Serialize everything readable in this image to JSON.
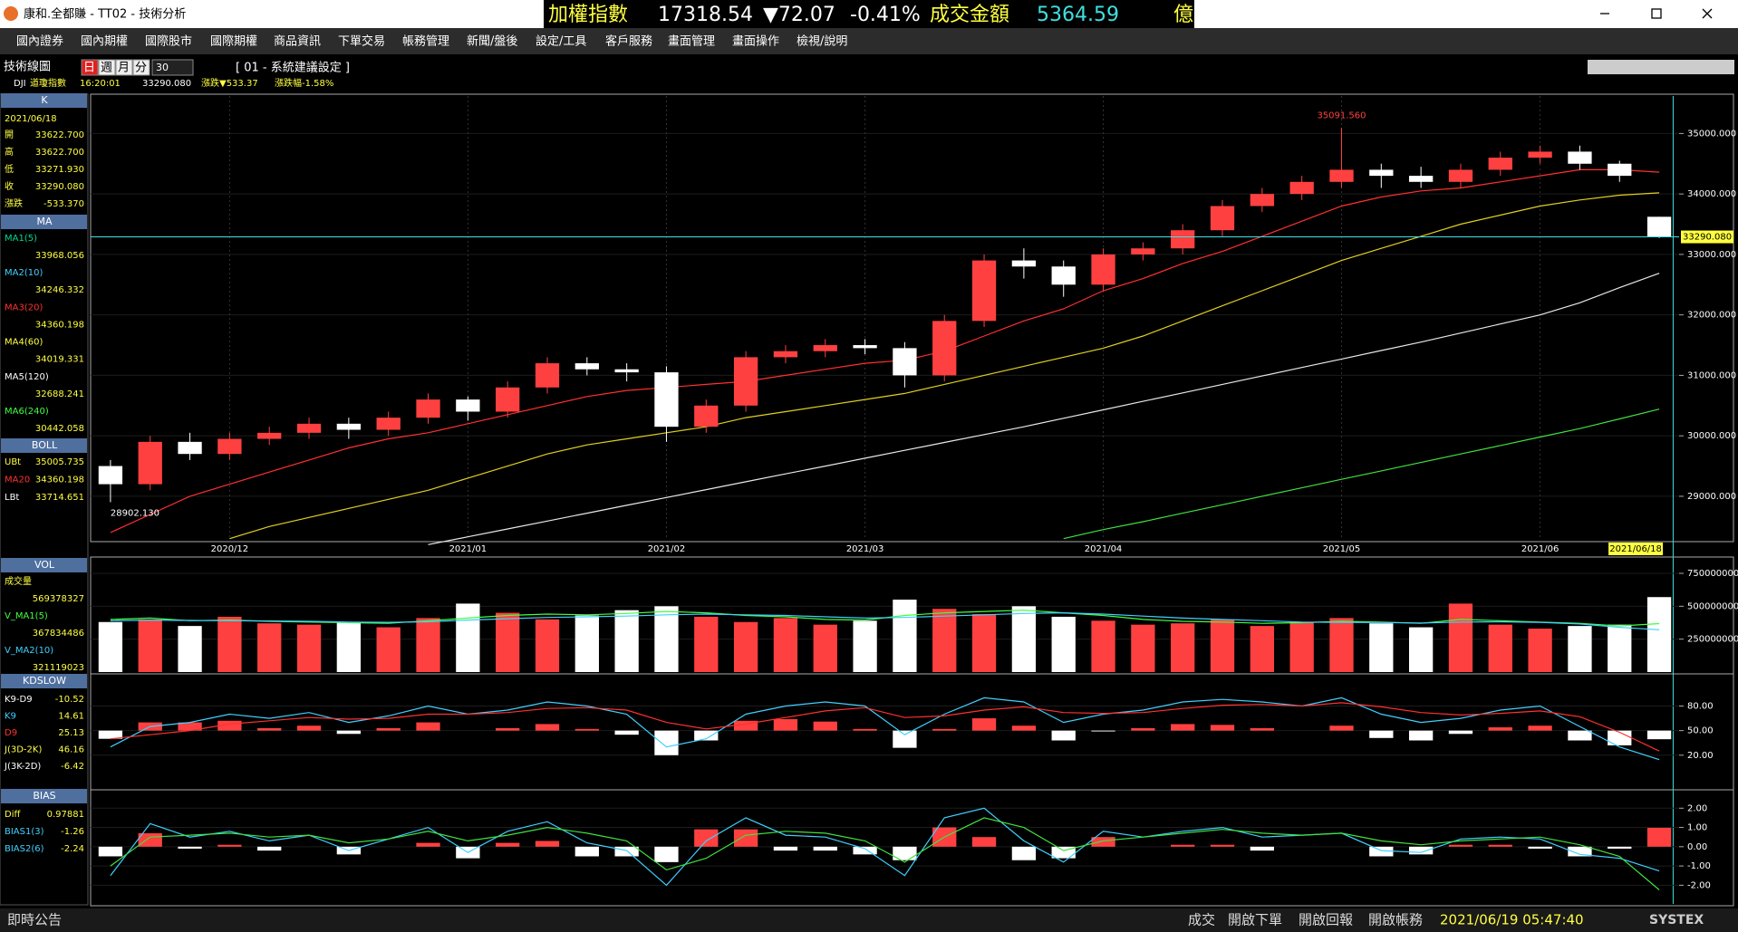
{
  "window": {
    "title": "康和.全都賺 - TT02 - 技術分析"
  },
  "ticker": {
    "name": "加權指數",
    "price": "17318.54",
    "change": "▼72.07",
    "percent": "-0.41%",
    "amount_label": "成交金額",
    "amount": "5364.59",
    "unit": "億"
  },
  "menu": [
    "國內證券",
    "國內期權",
    "國際股市",
    "國際期權",
    "商品資訊",
    "下單交易",
    "帳務管理",
    "新聞/盤後",
    "設定/工具",
    "客戶服務",
    "畫面管理",
    "畫面操作",
    "檢視/說明"
  ],
  "toolbar": {
    "title": "技術線圖",
    "periods": [
      "日",
      "週",
      "月",
      "分"
    ],
    "count": "30",
    "setting": "[ 01 - 系統建議設定 ]"
  },
  "quote": {
    "symbol": "DJI",
    "name": "道瓊指數",
    "time": "16:20:01",
    "price": "33290.080",
    "change": "漲跌▼533.37",
    "percent": "漲跌幅-1.58%"
  },
  "info": {
    "k": {
      "title": "K",
      "date": "2021/06/18",
      "rows": [
        {
          "label": "開",
          "value": "33622.700"
        },
        {
          "label": "高",
          "value": "33622.700"
        },
        {
          "label": "低",
          "value": "33271.930"
        },
        {
          "label": "收",
          "value": "33290.080"
        },
        {
          "label": "漲跌",
          "value": "-533.370"
        }
      ]
    },
    "ma": {
      "title": "MA",
      "rows": [
        {
          "label": "MA1(5)",
          "value": "33968.056",
          "color": "#00d890"
        },
        {
          "label": "MA2(10)",
          "value": "34246.332",
          "color": "#40d0ff"
        },
        {
          "label": "MA3(20)",
          "value": "34360.198",
          "color": "#ff3030"
        },
        {
          "label": "MA4(60)",
          "value": "34019.331",
          "color": "#ffff40"
        },
        {
          "label": "MA5(120)",
          "value": "32688.241",
          "color": "#ffffff"
        },
        {
          "label": "MA6(240)",
          "value": "30442.058",
          "color": "#40ff40"
        }
      ]
    },
    "boll": {
      "title": "BOLL",
      "rows": [
        {
          "label": "UBt",
          "value": "35005.735",
          "color": "#ffff40"
        },
        {
          "label": "MA20",
          "value": "34360.198",
          "color": "#ff3030"
        },
        {
          "label": "LBt",
          "value": "33714.651",
          "color": "#ffffff"
        }
      ]
    },
    "vol": {
      "title": "VOL",
      "rows": [
        {
          "label": "成交量",
          "value": "569378327",
          "color": "#ffff40"
        },
        {
          "label": "V_MA1(5)",
          "value": "367834486",
          "color": "#40ff40"
        },
        {
          "label": "V_MA2(10)",
          "value": "321119023",
          "color": "#40d0ff"
        }
      ]
    },
    "kd": {
      "title": "KDSLOW",
      "rows": [
        {
          "label": "K9-D9",
          "value": "-10.52",
          "color": "#ffffff"
        },
        {
          "label": "K9",
          "value": "14.61",
          "color": "#40d0ff"
        },
        {
          "label": "D9",
          "value": "25.13",
          "color": "#ff3030"
        },
        {
          "label": "J(3D-2K)",
          "value": "46.16",
          "color": "#ffff40"
        },
        {
          "label": "J(3K-2D)",
          "value": "-6.42",
          "color": "#ffffff"
        }
      ]
    },
    "bias": {
      "title": "BIAS",
      "rows": [
        {
          "label": "Diff",
          "value": "0.97881",
          "color": "#ffff40"
        },
        {
          "label": "BIAS1(3)",
          "value": "-1.26",
          "color": "#40d0ff"
        },
        {
          "label": "BIAS2(6)",
          "value": "-2.24",
          "color": "#40d0ff"
        }
      ]
    }
  },
  "chart_data": [
    {
      "type": "candlestick",
      "up_color": "#ff4040",
      "down_color": "#ffffff",
      "categories": [
        null,
        null,
        null,
        "2020/12",
        null,
        null,
        null,
        null,
        null,
        "2021/01",
        null,
        null,
        null,
        null,
        "2021/02",
        null,
        null,
        null,
        null,
        "2021/03",
        null,
        null,
        null,
        null,
        null,
        "2021/04",
        null,
        null,
        null,
        null,
        null,
        "2021/05",
        null,
        null,
        null,
        null,
        "2021/06",
        null,
        null,
        "2021/06/18"
      ],
      "open": [
        29500,
        29200,
        29900,
        29700,
        29950,
        30050,
        30200,
        30100,
        30300,
        30600,
        30400,
        30800,
        31200,
        31100,
        31050,
        30150,
        30500,
        31300,
        31400,
        31500,
        31450,
        31000,
        31900,
        32900,
        32800,
        32500,
        33000,
        33100,
        33400,
        33800,
        34000,
        34200,
        34400,
        34300,
        34200,
        34400,
        34600,
        34700,
        34500,
        33622.7
      ],
      "high": [
        29600,
        30000,
        30050,
        30050,
        30150,
        30300,
        30300,
        30400,
        30700,
        30650,
        30900,
        31300,
        31300,
        31200,
        31150,
        30600,
        31400,
        31500,
        31600,
        31600,
        31550,
        32000,
        33000,
        33100,
        32900,
        33100,
        33200,
        33500,
        33900,
        34100,
        34300,
        35091.56,
        34500,
        34450,
        34500,
        34700,
        34800,
        34800,
        34550,
        33622.7
      ],
      "low": [
        28902.13,
        29100,
        29600,
        29600,
        29850,
        29950,
        29950,
        30000,
        30200,
        30250,
        30300,
        30700,
        31000,
        30900,
        29900,
        30050,
        30400,
        31200,
        31300,
        31350,
        30800,
        30900,
        31800,
        32600,
        32300,
        32400,
        32900,
        33000,
        33300,
        33700,
        33900,
        34100,
        34100,
        34100,
        34100,
        34300,
        34500,
        34400,
        34200,
        33271.93
      ],
      "close": [
        29200,
        29900,
        29700,
        29950,
        30050,
        30200,
        30100,
        30300,
        30600,
        30400,
        30800,
        31200,
        31100,
        31050,
        30150,
        30500,
        31300,
        31400,
        31500,
        31450,
        31000,
        31900,
        32900,
        32800,
        32500,
        33000,
        33100,
        33400,
        33800,
        34000,
        34200,
        34400,
        34300,
        34200,
        34400,
        34600,
        34700,
        34500,
        34300,
        33290.08
      ],
      "lines": [
        {
          "color": "#ff3030",
          "values": [
            28400,
            28700,
            29000,
            29200,
            29400,
            29600,
            29800,
            29950,
            30050,
            30200,
            30350,
            30500,
            30650,
            30750,
            30800,
            30850,
            30900,
            31000,
            31100,
            31200,
            31250,
            31400,
            31650,
            31900,
            32100,
            32400,
            32600,
            32850,
            33050,
            33300,
            33550,
            33800,
            33950,
            34050,
            34100,
            34200,
            34300,
            34400,
            34400,
            34360.198
          ]
        },
        {
          "color": "#e0d020",
          "values": [
            null,
            null,
            null,
            28300,
            28500,
            28650,
            28800,
            28950,
            29100,
            29300,
            29500,
            29700,
            29850,
            29950,
            30050,
            30150,
            30300,
            30400,
            30500,
            30600,
            30700,
            30850,
            31000,
            31150,
            31300,
            31450,
            31650,
            31900,
            32150,
            32400,
            32650,
            32900,
            33100,
            33300,
            33500,
            33650,
            33800,
            33900,
            33980,
            34019.331
          ]
        },
        {
          "color": "#e8e8e8",
          "values": [
            null,
            null,
            null,
            null,
            null,
            null,
            null,
            null,
            28200,
            28330,
            28460,
            28590,
            28720,
            28850,
            28980,
            29110,
            29240,
            29370,
            29500,
            29630,
            29760,
            29890,
            30020,
            30150,
            30290,
            30430,
            30570,
            30710,
            30850,
            30990,
            31130,
            31270,
            31410,
            31550,
            31700,
            31850,
            32000,
            32200,
            32450,
            32688.241
          ]
        },
        {
          "color": "#40e040",
          "values": [
            null,
            null,
            null,
            null,
            null,
            null,
            null,
            null,
            null,
            null,
            null,
            null,
            null,
            null,
            null,
            null,
            null,
            null,
            null,
            null,
            null,
            null,
            null,
            null,
            28300,
            28450,
            28580,
            28720,
            28860,
            29000,
            29140,
            29280,
            29420,
            29560,
            29700,
            29840,
            29980,
            30120,
            30280,
            30442.058
          ]
        }
      ],
      "max_label": {
        "value": 35091.56,
        "label": "35091.560"
      },
      "min_label": {
        "value": 28902.13,
        "label": "28902.130"
      },
      "ylim": [
        28280,
        35620
      ],
      "yticks": [
        {
          "value": 29000,
          "label": "29000.000"
        },
        {
          "value": 30000,
          "label": "30000.000"
        },
        {
          "value": 31000,
          "label": "31000.000"
        },
        {
          "value": 32000,
          "label": "32000.000"
        },
        {
          "value": 33000,
          "label": "33000.000"
        },
        {
          "value": 34000,
          "label": "34000.000"
        },
        {
          "value": 35000,
          "label": "35000.000"
        }
      ]
    },
    {
      "type": "bar",
      "values": [
        380000000,
        400000000,
        350000000,
        420000000,
        370000000,
        360000000,
        380000000,
        340000000,
        410000000,
        520000000,
        450000000,
        400000000,
        430000000,
        470000000,
        500000000,
        420000000,
        380000000,
        410000000,
        360000000,
        390000000,
        550000000,
        480000000,
        440000000,
        500000000,
        420000000,
        390000000,
        360000000,
        370000000,
        400000000,
        350000000,
        380000000,
        410000000,
        370000000,
        340000000,
        520000000,
        360000000,
        330000000,
        350000000,
        360000000,
        569378327
      ],
      "lines": [
        {
          "color": "#40ff40",
          "values": [
            400000000,
            410000000,
            390000000,
            395000000,
            385000000,
            380000000,
            375000000,
            370000000,
            390000000,
            410000000,
            430000000,
            440000000,
            435000000,
            445000000,
            460000000,
            450000000,
            430000000,
            420000000,
            400000000,
            395000000,
            430000000,
            450000000,
            460000000,
            470000000,
            450000000,
            430000000,
            400000000,
            385000000,
            380000000,
            370000000,
            375000000,
            385000000,
            380000000,
            370000000,
            400000000,
            390000000,
            380000000,
            370000000,
            350000000,
            367834486
          ]
        },
        {
          "color": "#40d0ff",
          "values": [
            390000000,
            395000000,
            392000000,
            390000000,
            388000000,
            385000000,
            380000000,
            378000000,
            382000000,
            395000000,
            405000000,
            415000000,
            420000000,
            425000000,
            435000000,
            440000000,
            435000000,
            430000000,
            420000000,
            410000000,
            415000000,
            425000000,
            435000000,
            445000000,
            450000000,
            440000000,
            425000000,
            410000000,
            400000000,
            390000000,
            380000000,
            378000000,
            376000000,
            372000000,
            380000000,
            382000000,
            378000000,
            365000000,
            340000000,
            321119023
          ]
        }
      ],
      "ylim": [
        0,
        860000000
      ],
      "yticks": [
        250000000,
        500000000,
        750000000
      ]
    },
    {
      "type": "line",
      "up_color": "#ff4040",
      "down_color": "#ffffff",
      "bars": [
        -10,
        10,
        10,
        12,
        3,
        6,
        -4,
        3,
        10,
        0,
        3,
        8,
        2,
        -5,
        -30,
        -12,
        12,
        14,
        11,
        2,
        -21,
        2,
        15,
        6,
        -12,
        -1,
        3,
        8,
        7,
        3,
        0,
        6,
        -9,
        -12,
        -4,
        4,
        6,
        -12,
        -18,
        -10.52
      ],
      "lines": [
        {
          "color": "#40d0ff",
          "values": [
            30,
            55,
            60,
            70,
            65,
            72,
            60,
            68,
            80,
            70,
            75,
            85,
            80,
            70,
            30,
            40,
            70,
            80,
            85,
            80,
            45,
            70,
            90,
            85,
            60,
            70,
            75,
            85,
            88,
            85,
            80,
            90,
            70,
            60,
            65,
            75,
            80,
            55,
            30,
            14.61
          ]
        },
        {
          "color": "#ff3030",
          "values": [
            40,
            45,
            50,
            58,
            62,
            66,
            64,
            65,
            70,
            70,
            72,
            77,
            78,
            75,
            60,
            52,
            58,
            66,
            74,
            78,
            66,
            68,
            75,
            79,
            72,
            71,
            72,
            77,
            81,
            82,
            80,
            84,
            79,
            72,
            69,
            71,
            74,
            67,
            48,
            25.13
          ]
        }
      ],
      "ylim": [
        -20,
        117
      ],
      "yticks": [
        {
          "value": 20,
          "label": "20.00"
        },
        {
          "value": 50,
          "label": "50.00"
        },
        {
          "value": 80,
          "label": "80.00"
        }
      ]
    },
    {
      "type": "bar",
      "up_color": "#ff4040",
      "down_color": "#ffffff",
      "values": [
        -0.5,
        0.7,
        -0.1,
        0.1,
        -0.2,
        0,
        -0.4,
        0,
        0.2,
        -0.6,
        0.2,
        0.3,
        -0.5,
        -0.5,
        -0.8,
        0.9,
        0.9,
        -0.2,
        -0.2,
        -0.4,
        -0.7,
        1.0,
        0.5,
        -0.7,
        -0.6,
        0.5,
        0,
        0.1,
        0.1,
        -0.2,
        0,
        0,
        -0.5,
        -0.4,
        0.1,
        0.1,
        -0.1,
        -0.5,
        -0.1,
        0.97881
      ],
      "lines": [
        {
          "color": "#40d0ff",
          "values": [
            -1.5,
            1.2,
            0.5,
            0.8,
            0.3,
            0.6,
            -0.2,
            0.4,
            1.0,
            -0.3,
            0.8,
            1.3,
            0.2,
            -0.2,
            -2.0,
            0.3,
            1.5,
            0.6,
            0.5,
            -0.1,
            -1.5,
            1.5,
            2.0,
            0.3,
            -0.8,
            0.8,
            0.5,
            0.8,
            1.0,
            0.5,
            0.6,
            0.7,
            -0.2,
            -0.3,
            0.4,
            0.5,
            0.4,
            -0.4,
            -0.6,
            -1.26
          ]
        },
        {
          "color": "#40e040",
          "values": [
            -1.0,
            0.5,
            0.6,
            0.7,
            0.5,
            0.6,
            0.2,
            0.4,
            0.8,
            0.3,
            0.6,
            1.0,
            0.7,
            0.3,
            -1.2,
            -0.6,
            0.6,
            0.8,
            0.7,
            0.3,
            -0.8,
            0.5,
            1.5,
            1.0,
            -0.2,
            0.3,
            0.5,
            0.7,
            0.9,
            0.7,
            0.6,
            0.7,
            0.3,
            0.1,
            0.3,
            0.4,
            0.5,
            0.1,
            -0.5,
            -2.24
          ]
        }
      ],
      "ylim": [
        -2.97,
        2.86
      ],
      "yticks": [
        {
          "value": -2,
          "label": "-2.00"
        },
        {
          "value": -1,
          "label": "-1.00"
        },
        {
          "value": 0,
          "label": "0.00"
        },
        {
          "value": 1,
          "label": "1.00"
        },
        {
          "value": 2,
          "label": "2.00"
        }
      ]
    }
  ],
  "status": {
    "notice": "即時公告",
    "items": [
      "成交",
      "開啟下單",
      "開啟回報",
      "開啟帳務"
    ],
    "time": "2021/06/19 05:47:40",
    "brand": "SYSTEX"
  }
}
